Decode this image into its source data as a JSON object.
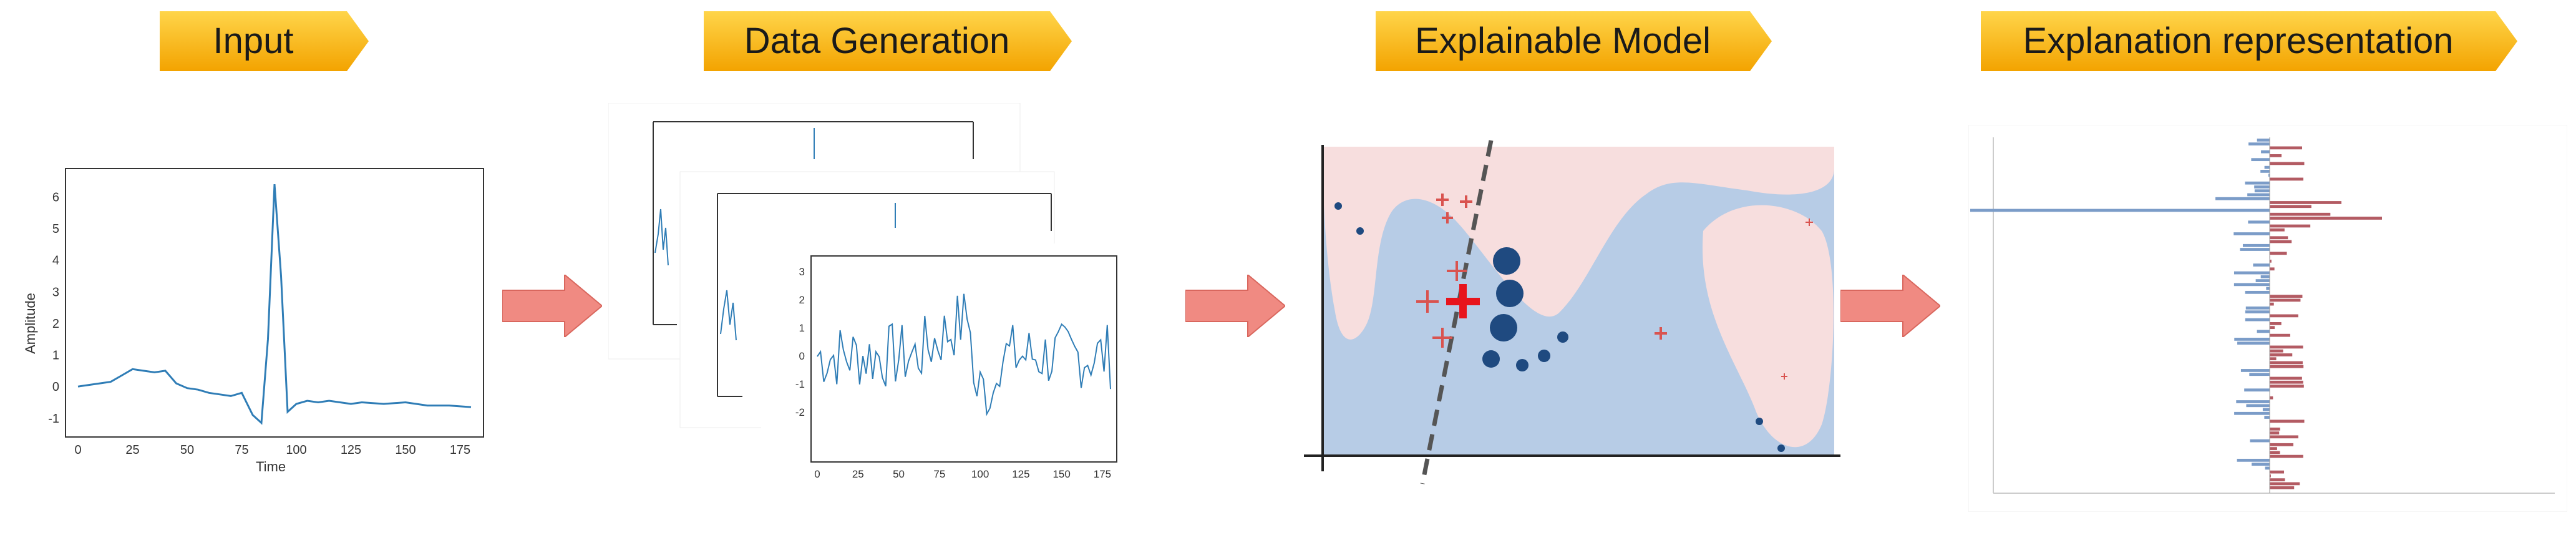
{
  "stages": [
    {
      "label": "Input"
    },
    {
      "label": "Data Generation"
    },
    {
      "label": "Explainable Model"
    },
    {
      "label": "Explanation representation"
    }
  ],
  "input_chart": {
    "ylabel": "Amplitude",
    "xlabel": "Time",
    "xticks": [
      "0",
      "25",
      "50",
      "75",
      "100",
      "125",
      "150",
      "175"
    ],
    "yticks": [
      "6",
      "5",
      "4",
      "3",
      "2",
      "1",
      "0",
      "-1"
    ]
  },
  "generated_chart": {
    "xticks": [
      "0",
      "25",
      "50",
      "75",
      "100",
      "125",
      "150",
      "175"
    ],
    "yticks": [
      "3",
      "2",
      "1",
      "0",
      "-1",
      "-2"
    ]
  },
  "colors": {
    "label_fill_top": "#ffd54a",
    "label_fill_bottom": "#f3a300",
    "arrow_fill": "#f08a82",
    "series": "#2f7db6",
    "model_blue": "#b7cce6",
    "model_pink": "#f7dede",
    "neg_bar": "#7b9cc8",
    "pos_bar": "#b35b63"
  },
  "chart_data": {
    "type": "line",
    "x": [
      0,
      5,
      10,
      15,
      20,
      25,
      30,
      35,
      40,
      45,
      50,
      55,
      60,
      65,
      70,
      75,
      80,
      84,
      87,
      90,
      93,
      96,
      100,
      105,
      110,
      115,
      120,
      125,
      130,
      140,
      150,
      160,
      170,
      180
    ],
    "values": [
      0.0,
      0.05,
      0.1,
      0.15,
      0.35,
      0.55,
      0.5,
      0.45,
      0.5,
      0.1,
      -0.05,
      -0.1,
      -0.2,
      -0.25,
      -0.3,
      -0.2,
      -0.9,
      -1.15,
      1.5,
      6.4,
      3.5,
      -0.8,
      -0.55,
      -0.45,
      -0.5,
      -0.45,
      -0.5,
      -0.55,
      -0.5,
      -0.55,
      -0.5,
      -0.6,
      -0.6,
      -0.65
    ],
    "xlabel": "Time",
    "ylabel": "Amplitude",
    "xlim": [
      0,
      180
    ],
    "ylim": [
      -1.3,
      6.6
    ]
  }
}
